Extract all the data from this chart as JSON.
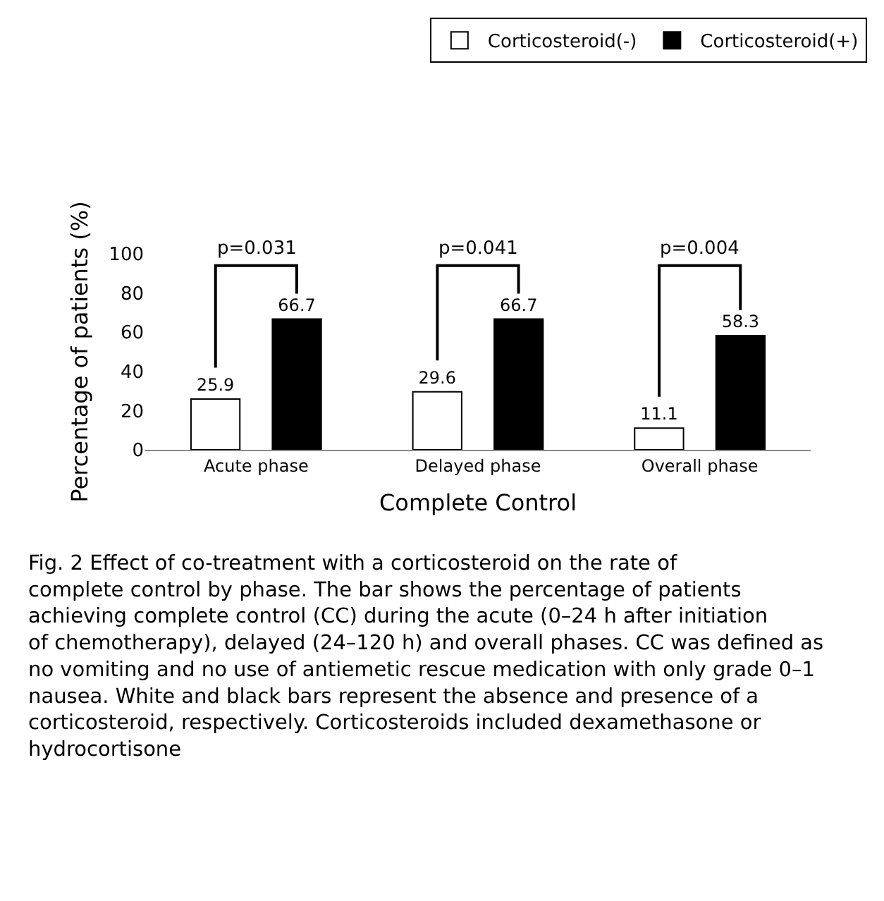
{
  "chart_data": {
    "type": "bar",
    "xlabel": "Complete Control",
    "ylabel": "Percentage of patients (%)",
    "categories": [
      "Acute phase",
      "Delayed phase",
      "Overall phase"
    ],
    "series": [
      {
        "name": "Corticosteroid(-)",
        "color": "#ffffff",
        "values": [
          25.9,
          29.6,
          11.1
        ]
      },
      {
        "name": "Corticosteroid(+)",
        "color": "#000000",
        "values": [
          66.7,
          66.7,
          58.3
        ]
      }
    ],
    "ylim": [
      0,
      100
    ],
    "yticks": [
      0,
      20,
      40,
      60,
      80,
      100
    ],
    "legend": "top right",
    "data_labels": true,
    "annotations": [
      "p=0.031",
      "p=0.041",
      "p=0.004",
      "Fig. 2 Effect of co-treatment with a corticosteroid on the rate of complete control by phase. The bar shows the percentage of patients achieving complete control (CC) during the acute (0–24 h after initiation of chemotherapy), delayed (24–120 h) and overall phases. CC was defined as no vomiting and no use of antiemetic rescue medication with only grade 0–1 nausea. White and black bars represent the absence and presence of a corticosteroid, respectively. Corticosteroids included dexamethasone or hydrocortisone"
    ]
  }
}
